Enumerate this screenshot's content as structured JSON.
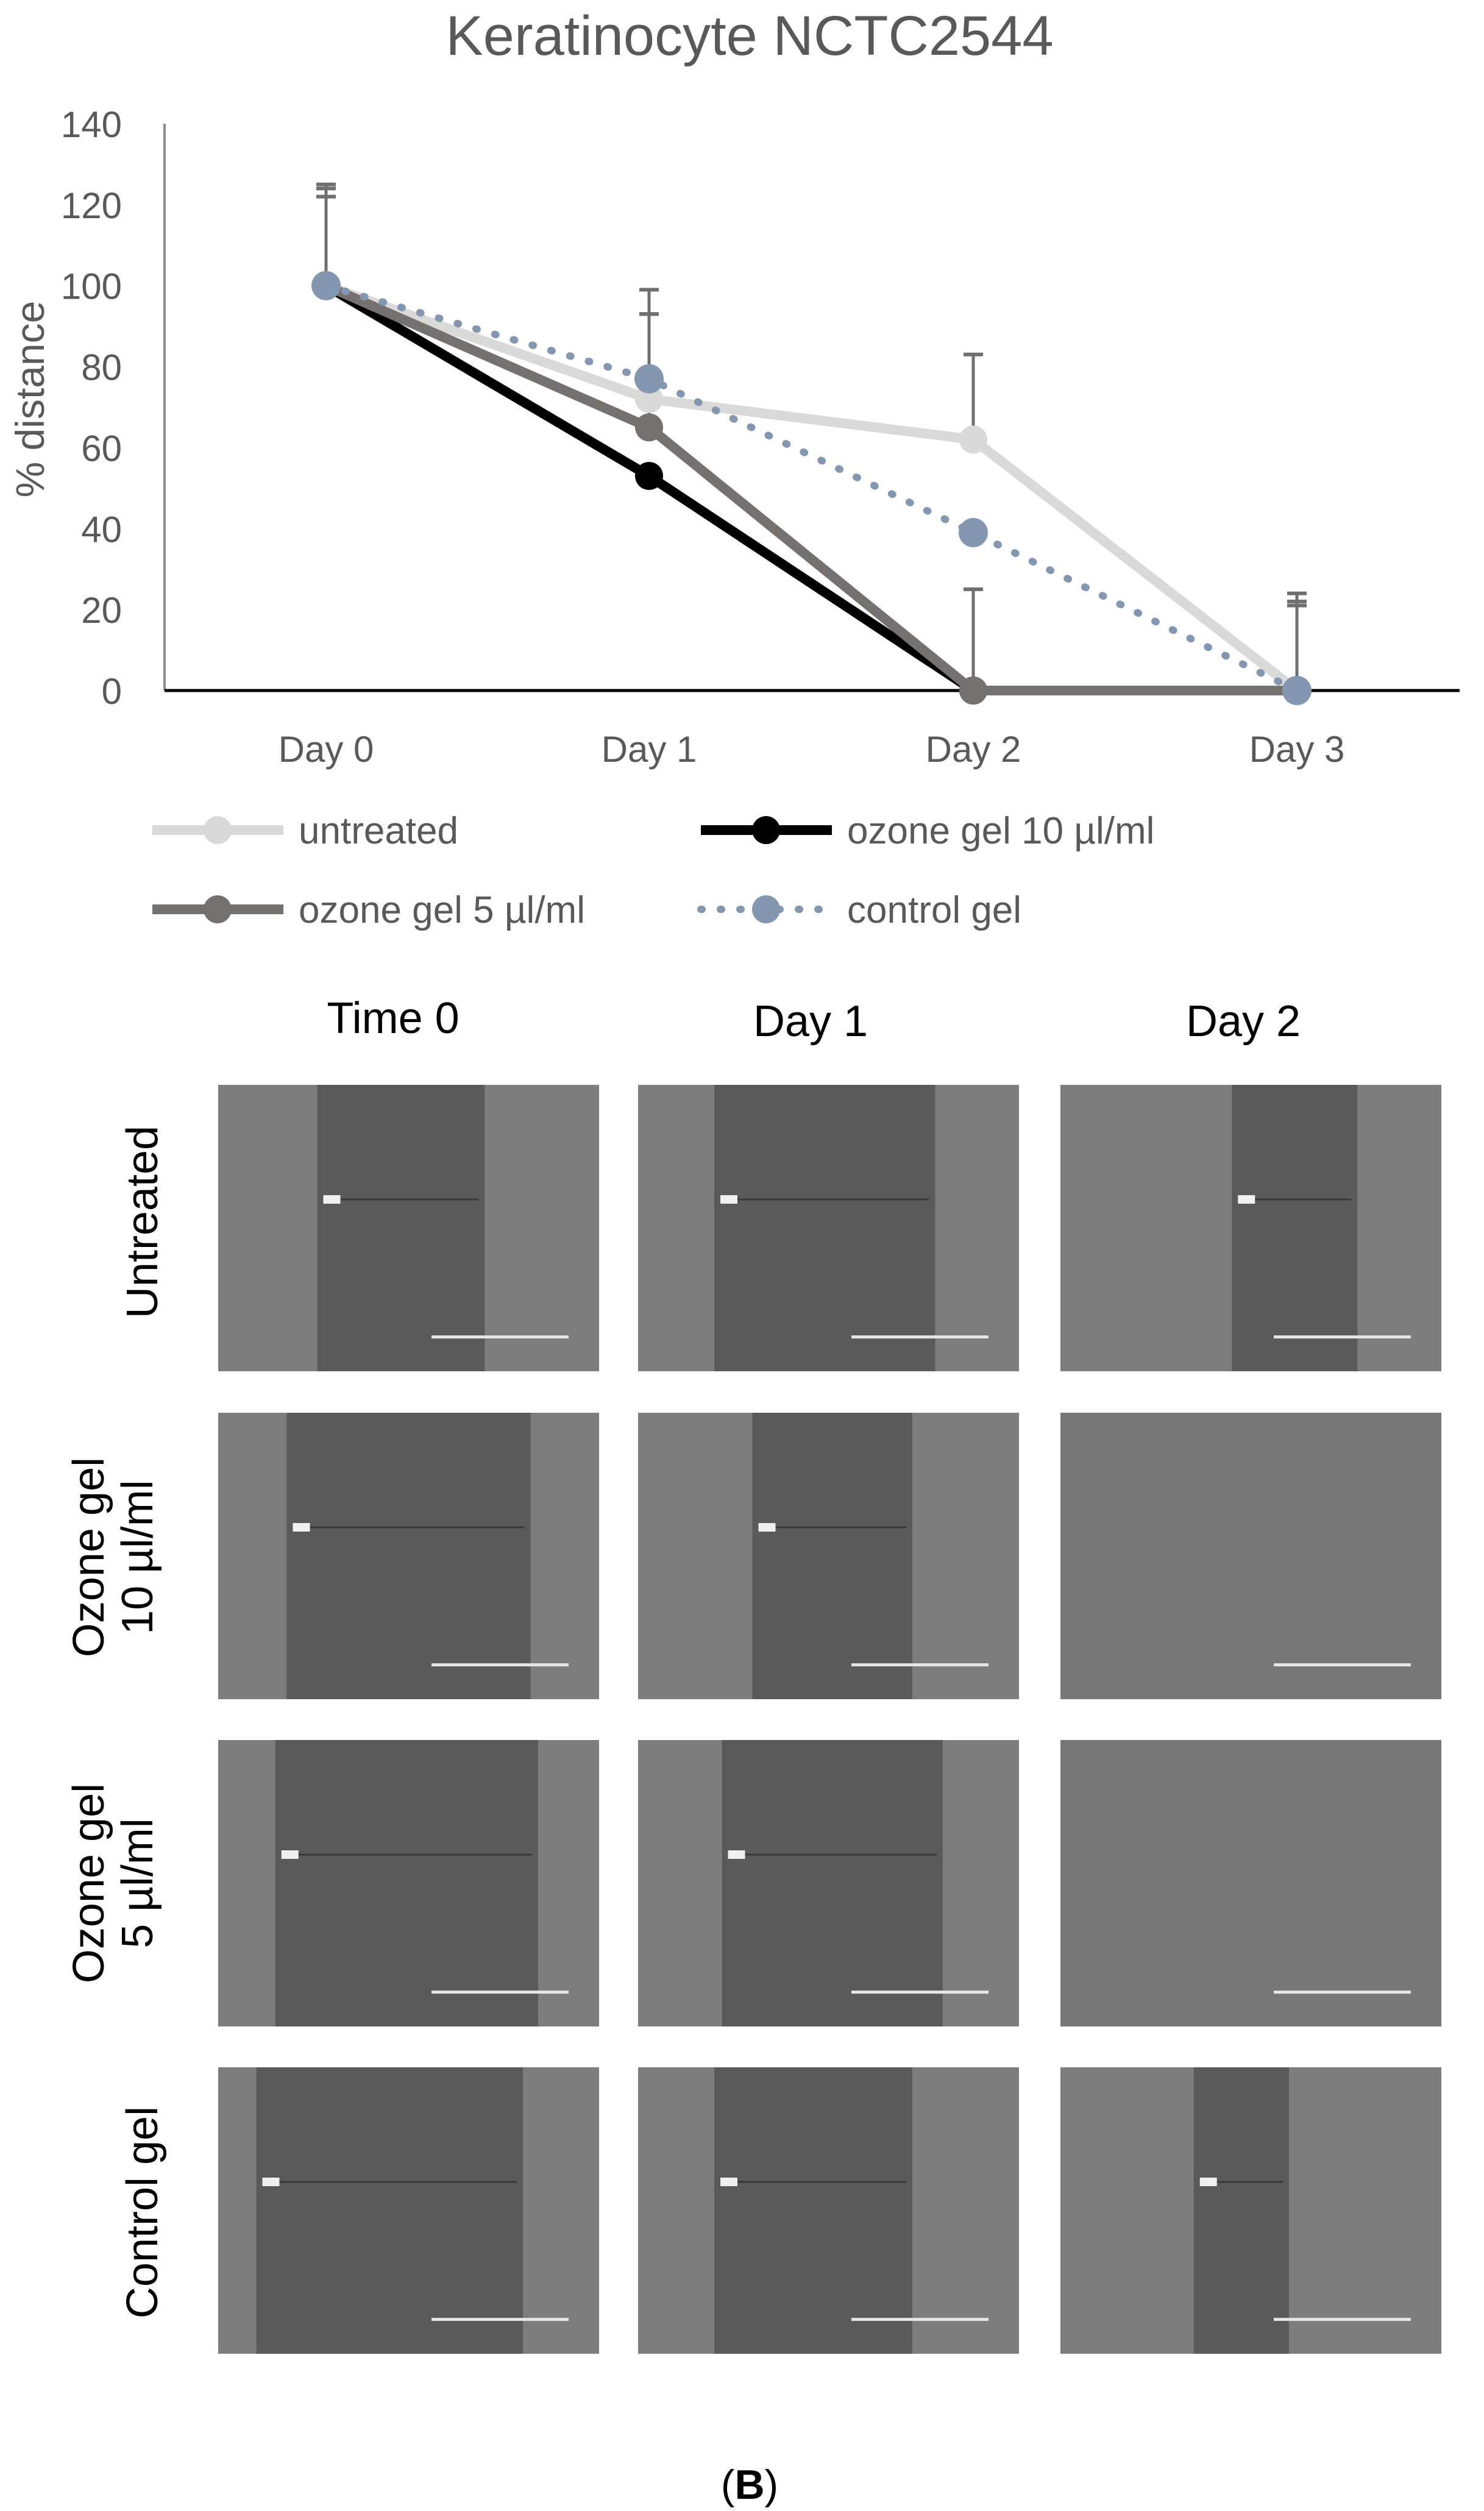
{
  "chart_data": {
    "type": "line",
    "title": "Keratinocyte NCTC2544",
    "xlabel": "",
    "ylabel": "% distance",
    "categories": [
      "Day 0",
      "Day 1",
      "Day 2",
      "Day 3"
    ],
    "yticks": [
      0,
      20,
      40,
      60,
      80,
      100,
      120,
      140
    ],
    "ylim": [
      0,
      140
    ],
    "grid": false,
    "legend_position": "bottom",
    "series": [
      {
        "name": "untreated",
        "values": [
          100,
          72,
          62,
          0
        ],
        "error": [
          24,
          21,
          21,
          24
        ],
        "color": "#d9d9d9",
        "style": "solid"
      },
      {
        "name": "ozone gel 10 µl/ml",
        "values": [
          100,
          53,
          0,
          0
        ],
        "error": [
          0,
          0,
          0,
          0
        ],
        "color": "#000000",
        "style": "solid"
      },
      {
        "name": "ozone gel 5 µl/ml",
        "values": [
          100,
          65,
          0,
          0
        ],
        "error": [
          22,
          28,
          25,
          21
        ],
        "color": "#767171",
        "style": "solid"
      },
      {
        "name": "control gel",
        "values": [
          100,
          77,
          39,
          0
        ],
        "error": [
          25,
          22,
          0,
          22
        ],
        "color": "#8497b0",
        "style": "dotted"
      }
    ]
  },
  "figure": {
    "column_headers": [
      "Time 0",
      "Day 1",
      "Day 2"
    ],
    "row_headers": [
      [
        "Untreated"
      ],
      [
        "Ozone gel",
        "10 µl/ml"
      ],
      [
        "Ozone gel",
        "5 µl/ml"
      ],
      [
        "Control gel"
      ]
    ],
    "panel_letter": "B",
    "image_colors": {
      "photo_fill": "#6b6b6b",
      "photo_gap": "#5a5a5a",
      "photo_cells": "#7d7d7d",
      "scale_bar": "#e6e6e6"
    }
  }
}
